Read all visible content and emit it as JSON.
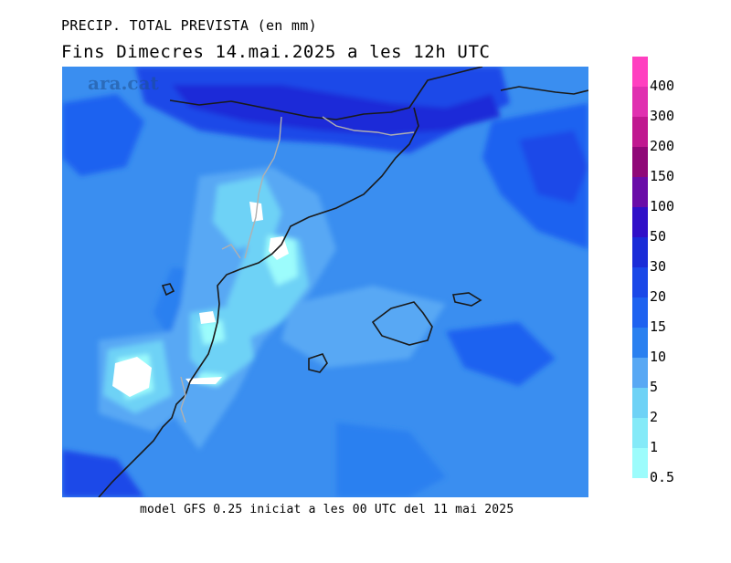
{
  "title": {
    "line1": "PRECIP. TOTAL PREVISTA (en mm)",
    "line2": "Fins Dimecres  14.mai.2025 a les 12h UTC"
  },
  "watermark": "ara.cat",
  "footer": "model GFS 0.25 iniciat a les 00 UTC del 11 mai 2025",
  "legend": {
    "items": [
      {
        "label": "400",
        "color": "#ff40c0"
      },
      {
        "label": "300",
        "color": "#e030b0"
      },
      {
        "label": "200",
        "color": "#c01890"
      },
      {
        "label": "150",
        "color": "#900878"
      },
      {
        "label": "100",
        "color": "#6a0ca8"
      },
      {
        "label": "50",
        "color": "#3010c8"
      },
      {
        "label": "30",
        "color": "#1a2cd8"
      },
      {
        "label": "20",
        "color": "#1a48e8"
      },
      {
        "label": "15",
        "color": "#1e62f0"
      },
      {
        "label": "10",
        "color": "#2a80f0"
      },
      {
        "label": "5",
        "color": "#58a8f4"
      },
      {
        "label": "2",
        "color": "#6ed2f6"
      },
      {
        "label": "1",
        "color": "#84eaf8"
      },
      {
        "label": "0.5",
        "color": "#9cfcfc"
      }
    ]
  },
  "colors": {
    "base": "#3a8ef0",
    "heavy": "#1a48e8",
    "heaviest": "#1a2cd8",
    "light": "#58a8f4",
    "lighter": "#6ed2f6",
    "lightest": "#9cfcfc",
    "coast": "#1a1a1a",
    "border": "#b0b0b0"
  }
}
